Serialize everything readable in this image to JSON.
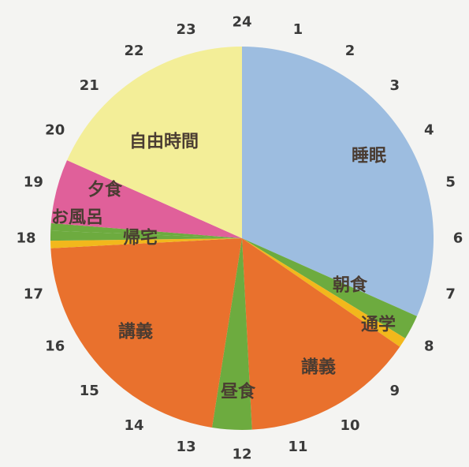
{
  "chart_data": {
    "type": "pie",
    "title": "",
    "start_angle_hours": 0,
    "total_hours": 24,
    "hour_labels": [
      "24",
      "1",
      "2",
      "3",
      "4",
      "5",
      "6",
      "7",
      "8",
      "9",
      "10",
      "11",
      "12",
      "13",
      "14",
      "15",
      "16",
      "17",
      "18",
      "19",
      "20",
      "21",
      "22",
      "23"
    ],
    "slices": [
      {
        "label": "睡眠",
        "start": 0,
        "end": 7.6,
        "color": "#9dbde0"
      },
      {
        "label": "朝食",
        "start": 7.6,
        "end": 8.1,
        "color": "#6dab3f"
      },
      {
        "label": "通学",
        "start": 8.1,
        "end": 8.3,
        "color": "#f2b81c"
      },
      {
        "label": "講義",
        "start": 8.3,
        "end": 11.8,
        "color": "#e9712d"
      },
      {
        "label": "昼食",
        "start": 11.8,
        "end": 12.6,
        "color": "#6dab3f"
      },
      {
        "label": "講義",
        "start": 12.6,
        "end": 17.8,
        "color": "#e9712d"
      },
      {
        "label": "",
        "start": 17.8,
        "end": 17.95,
        "color": "#f2b81c"
      },
      {
        "label": "帰宅",
        "start": 17.95,
        "end": 18.15,
        "color": "#6dab3f"
      },
      {
        "label": "お風呂",
        "start": 18.15,
        "end": 18.3,
        "color": "#6dab3f"
      },
      {
        "label": "夕食",
        "start": 18.3,
        "end": 19.6,
        "color": "#e0609a"
      },
      {
        "label": "自由時間",
        "start": 19.6,
        "end": 24,
        "color": "#f3ee98"
      }
    ]
  }
}
